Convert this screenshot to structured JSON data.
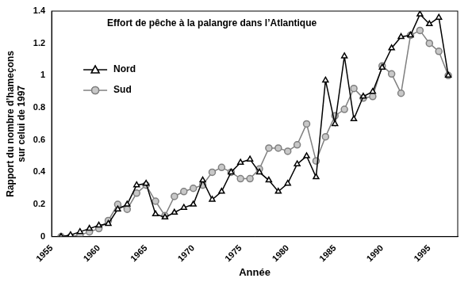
{
  "chart_data": {
    "type": "line",
    "title": "Effort de pêche à la palangre dans l’Atlantique",
    "x_label": "Année",
    "y_label": "Rapport du nombre d’hameçons sur celui de 1997",
    "x": [
      1956,
      1957,
      1958,
      1959,
      1960,
      1961,
      1962,
      1963,
      1964,
      1965,
      1966,
      1967,
      1968,
      1969,
      1970,
      1971,
      1972,
      1973,
      1974,
      1975,
      1976,
      1977,
      1978,
      1979,
      1980,
      1981,
      1982,
      1983,
      1984,
      1985,
      1986,
      1987,
      1988,
      1989,
      1990,
      1991,
      1992,
      1993,
      1994,
      1995,
      1996,
      1997
    ],
    "series": [
      {
        "name": "Nord",
        "color": "#000000",
        "marker": "triangle",
        "line_style": "solid",
        "values": [
          0,
          0.01,
          0.03,
          0.05,
          0.07,
          0.08,
          0.17,
          0.2,
          0.32,
          0.33,
          0.14,
          0.12,
          0.15,
          0.18,
          0.2,
          0.35,
          0.23,
          0.28,
          0.4,
          0.46,
          0.48,
          0.4,
          0.35,
          0.28,
          0.33,
          0.45,
          0.5,
          0.37,
          0.97,
          0.7,
          1.12,
          0.73,
          0.87,
          0.9,
          1.05,
          1.17,
          1.24,
          1.25,
          1.38,
          1.32,
          1.36,
          1.0
        ]
      },
      {
        "name": "Sud",
        "color": "#808080",
        "marker": "circle",
        "line_style": "solid",
        "values": [
          0,
          0,
          0.01,
          0.03,
          0.05,
          0.1,
          0.2,
          0.17,
          0.27,
          0.32,
          0.22,
          0.13,
          0.25,
          0.28,
          0.3,
          0.32,
          0.4,
          0.43,
          0.4,
          0.36,
          0.36,
          0.42,
          0.55,
          0.55,
          0.53,
          0.57,
          0.7,
          0.47,
          0.62,
          0.75,
          0.79,
          0.92,
          0.86,
          0.87,
          1.06,
          1.01,
          0.89,
          1.25,
          1.28,
          1.2,
          1.15,
          1.0
        ]
      }
    ],
    "xlim": [
      1955,
      1998
    ],
    "xticks": [
      1955,
      1960,
      1965,
      1970,
      1975,
      1980,
      1985,
      1990,
      1995
    ],
    "ylim": [
      0,
      1.4
    ],
    "yticks": [
      0,
      0.2,
      0.4,
      0.6,
      0.8,
      1,
      1.2,
      1.4
    ],
    "grid": false,
    "legend": "upper left"
  }
}
